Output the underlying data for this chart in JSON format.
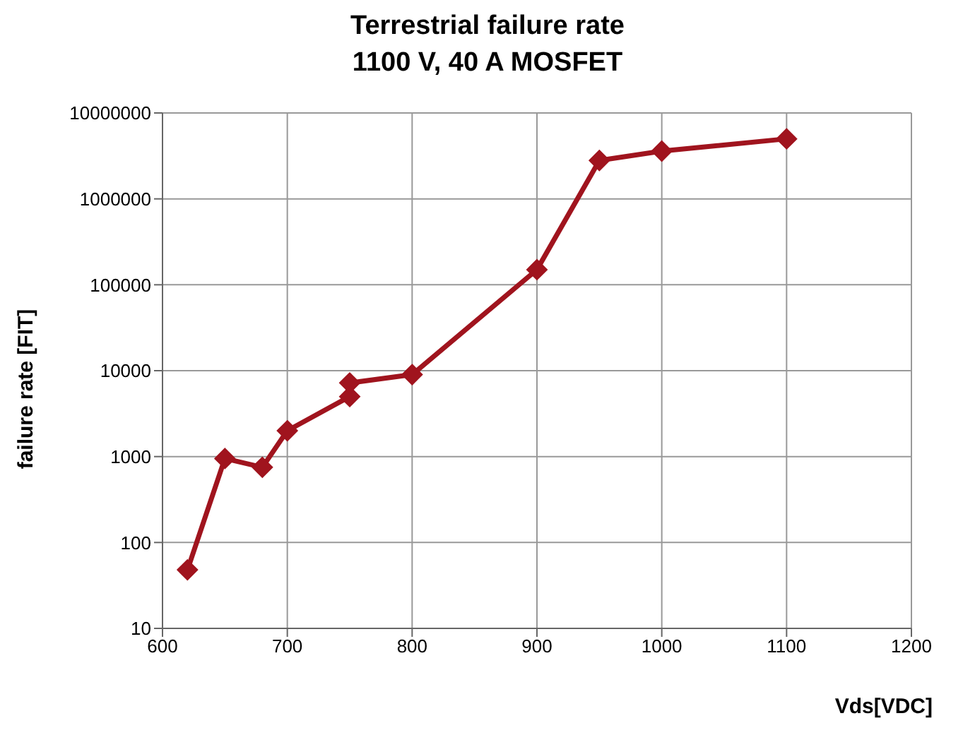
{
  "chart_data": {
    "type": "line",
    "title": "Terrestrial failure rate",
    "subtitle": "1100 V, 40 A MOSFET",
    "xlabel": "Vds[VDC]",
    "ylabel": "failure rate [FIT]",
    "x": [
      620,
      650,
      680,
      700,
      750,
      750,
      800,
      900,
      950,
      1000,
      1100
    ],
    "series": [
      {
        "color": "#a0141e",
        "values": [
          48,
          950,
          750,
          2000,
          5000,
          7200,
          9000,
          150000,
          2800000,
          3600000,
          5000000
        ]
      }
    ],
    "xlim": [
      600,
      1200
    ],
    "xticks": [
      600,
      700,
      800,
      900,
      1000,
      1100,
      1200
    ],
    "ylim": [
      10,
      10000000
    ],
    "yticks": [
      10,
      100,
      1000,
      10000,
      100000,
      1000000,
      10000000
    ],
    "log": "y",
    "grid": true,
    "marker": "diamond",
    "line_style": "solid"
  }
}
